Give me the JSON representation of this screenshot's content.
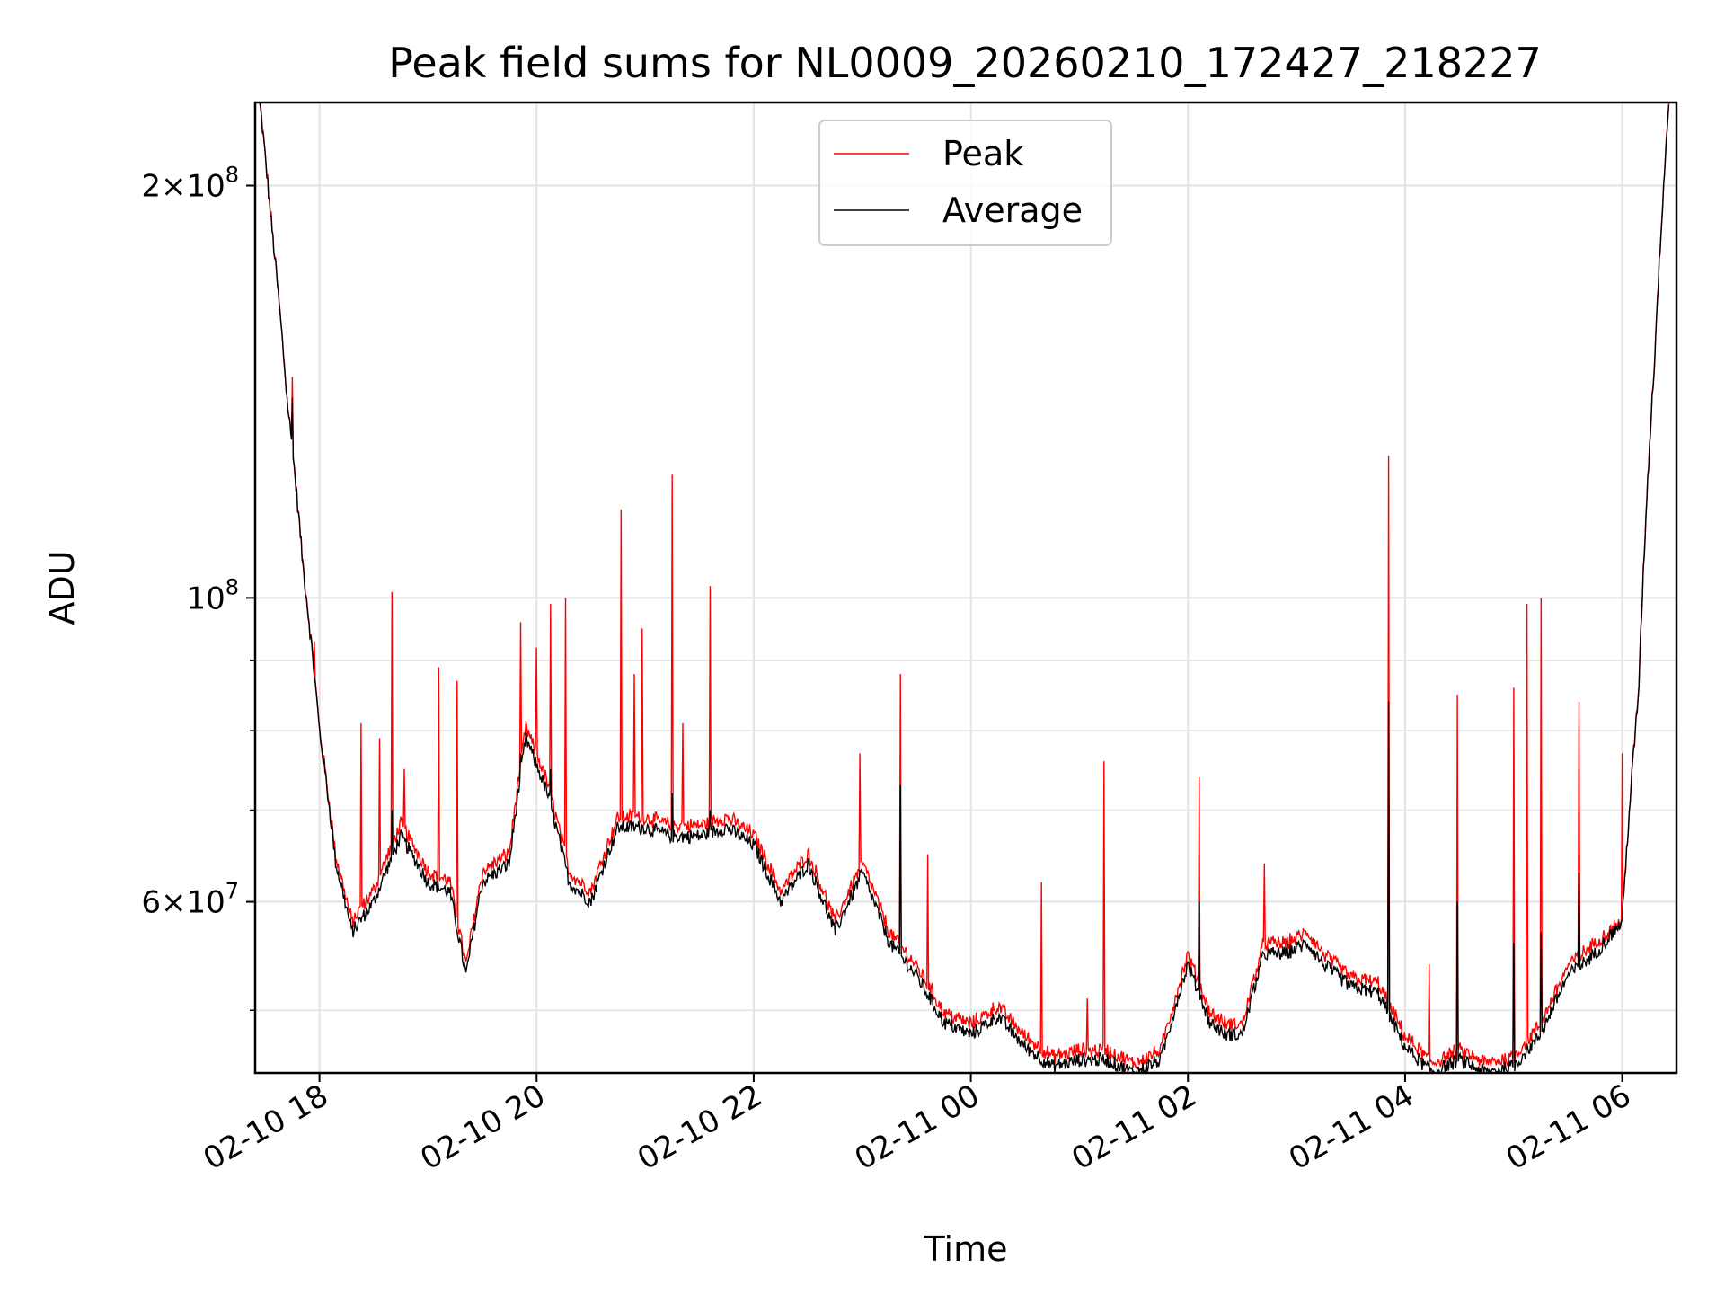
{
  "chart_data": {
    "type": "line",
    "title": "Peak field sums for NL0009_20260210_172427_218227",
    "xlabel": "Time",
    "ylabel": "ADU",
    "yscale": "log",
    "xlim": [
      "2026-02-10T17:24:27",
      "2026-02-11T06:30:00"
    ],
    "ylim": [
      45000000,
      230000000
    ],
    "grid": true,
    "legend_position": "upper center",
    "x_ticks": [
      "02-10 18",
      "02-10 20",
      "02-10 22",
      "02-11 00",
      "02-11 02",
      "02-11 04",
      "02-11 06"
    ],
    "x_tick_hours": [
      18,
      20,
      22,
      24,
      26,
      28,
      30
    ],
    "y_ticks": [
      {
        "value": 60000000,
        "mantissa": "6",
        "exp": "7"
      },
      {
        "value": 100000000,
        "mantissa": "",
        "exp": "8"
      },
      {
        "value": 200000000,
        "mantissa": "2",
        "exp": "8"
      }
    ],
    "y_minor_ticks": [
      50000000,
      70000000,
      80000000,
      90000000
    ],
    "series": [
      {
        "name": "Peak",
        "color": "#ff0000"
      },
      {
        "name": "Average",
        "color": "#000000"
      }
    ],
    "baseline": {
      "hours": [
        17.45,
        17.55,
        17.7,
        17.85,
        18.0,
        18.15,
        18.3,
        18.5,
        18.75,
        19.0,
        19.2,
        19.35,
        19.5,
        19.75,
        19.9,
        20.1,
        20.3,
        20.5,
        20.75,
        21.0,
        21.25,
        21.5,
        21.75,
        22.0,
        22.25,
        22.5,
        22.75,
        23.0,
        23.25,
        23.5,
        23.75,
        24.0,
        24.25,
        24.5,
        24.75,
        25.0,
        25.25,
        25.5,
        25.75,
        26.0,
        26.2,
        26.35,
        26.5,
        26.7,
        26.9,
        27.1,
        27.25,
        27.5,
        27.75,
        28.0,
        28.25,
        28.5,
        28.75,
        29.0,
        29.25,
        29.5,
        29.75,
        30.0,
        30.15,
        30.3,
        30.43
      ],
      "average": [
        230000000,
        190000000,
        140000000,
        105000000,
        80000000,
        64000000,
        57000000,
        60000000,
        67000000,
        62000000,
        61000000,
        53000000,
        62000000,
        64000000,
        79000000,
        72000000,
        62000000,
        60000000,
        68000000,
        68000000,
        67000000,
        67000000,
        68000000,
        66000000,
        60000000,
        64000000,
        57000000,
        63000000,
        56000000,
        53000000,
        49000000,
        48000000,
        49500000,
        47000000,
        45500000,
        46000000,
        46000000,
        45000000,
        46000000,
        54000000,
        49000000,
        48000000,
        48000000,
        55000000,
        55000000,
        56000000,
        54000000,
        52000000,
        51500000,
        47000000,
        45000000,
        46000000,
        45000000,
        45500000,
        48000000,
        53000000,
        55000000,
        58000000,
        85000000,
        150000000,
        230000000
      ],
      "peak_offset": [
        0,
        0,
        0,
        0,
        0,
        500000,
        800000,
        1000000,
        1200000,
        1000000,
        900000,
        700000,
        900000,
        1000000,
        1200000,
        1100000,
        900000,
        900000,
        1000000,
        1000000,
        1000000,
        1000000,
        1000000,
        1000000,
        900000,
        900000,
        800000,
        900000,
        800000,
        700000,
        700000,
        700000,
        700000,
        700000,
        600000,
        600000,
        600000,
        600000,
        600000,
        700000,
        700000,
        700000,
        700000,
        800000,
        800000,
        800000,
        800000,
        700000,
        700000,
        700000,
        600000,
        600000,
        600000,
        600000,
        700000,
        700000,
        800000,
        0,
        0,
        0,
        0
      ]
    },
    "peak_spikes": [
      {
        "hour": 17.75,
        "value": 145000000
      },
      {
        "hour": 17.95,
        "value": 93000000
      },
      {
        "hour": 18.38,
        "value": 81000000
      },
      {
        "hour": 18.55,
        "value": 79000000
      },
      {
        "hour": 18.67,
        "value": 101000000
      },
      {
        "hour": 18.78,
        "value": 75000000
      },
      {
        "hour": 19.1,
        "value": 89000000
      },
      {
        "hour": 19.27,
        "value": 87000000
      },
      {
        "hour": 19.85,
        "value": 96000000
      },
      {
        "hour": 20.0,
        "value": 92000000
      },
      {
        "hour": 20.13,
        "value": 99000000
      },
      {
        "hour": 20.27,
        "value": 100000000
      },
      {
        "hour": 20.78,
        "value": 116000000
      },
      {
        "hour": 20.9,
        "value": 88000000
      },
      {
        "hour": 20.97,
        "value": 95000000
      },
      {
        "hour": 21.25,
        "value": 123000000
      },
      {
        "hour": 21.35,
        "value": 81000000
      },
      {
        "hour": 21.6,
        "value": 102000000
      },
      {
        "hour": 22.98,
        "value": 77000000
      },
      {
        "hour": 23.35,
        "value": 88000000
      },
      {
        "hour": 23.6,
        "value": 65000000
      },
      {
        "hour": 24.65,
        "value": 62000000
      },
      {
        "hour": 25.07,
        "value": 51000000
      },
      {
        "hour": 25.23,
        "value": 76000000
      },
      {
        "hour": 26.1,
        "value": 74000000
      },
      {
        "hour": 26.7,
        "value": 64000000
      },
      {
        "hour": 27.85,
        "value": 127000000
      },
      {
        "hour": 28.22,
        "value": 54000000
      },
      {
        "hour": 28.48,
        "value": 85000000
      },
      {
        "hour": 29.0,
        "value": 86000000
      },
      {
        "hour": 29.12,
        "value": 99000000
      },
      {
        "hour": 29.25,
        "value": 100000000
      },
      {
        "hour": 29.6,
        "value": 84000000
      },
      {
        "hour": 30.0,
        "value": 77000000
      }
    ],
    "average_spikes": [
      {
        "hour": 17.75,
        "value": 140000000
      },
      {
        "hour": 18.67,
        "value": 70000000
      },
      {
        "hour": 19.85,
        "value": 77000000
      },
      {
        "hour": 20.13,
        "value": 75000000
      },
      {
        "hour": 21.25,
        "value": 72000000
      },
      {
        "hour": 21.6,
        "value": 70000000
      },
      {
        "hour": 23.35,
        "value": 73000000
      },
      {
        "hour": 26.1,
        "value": 60000000
      },
      {
        "hour": 27.85,
        "value": 84000000
      },
      {
        "hour": 28.48,
        "value": 60000000
      },
      {
        "hour": 29.0,
        "value": 56000000
      },
      {
        "hour": 29.25,
        "value": 57000000
      },
      {
        "hour": 29.6,
        "value": 63000000
      }
    ]
  }
}
